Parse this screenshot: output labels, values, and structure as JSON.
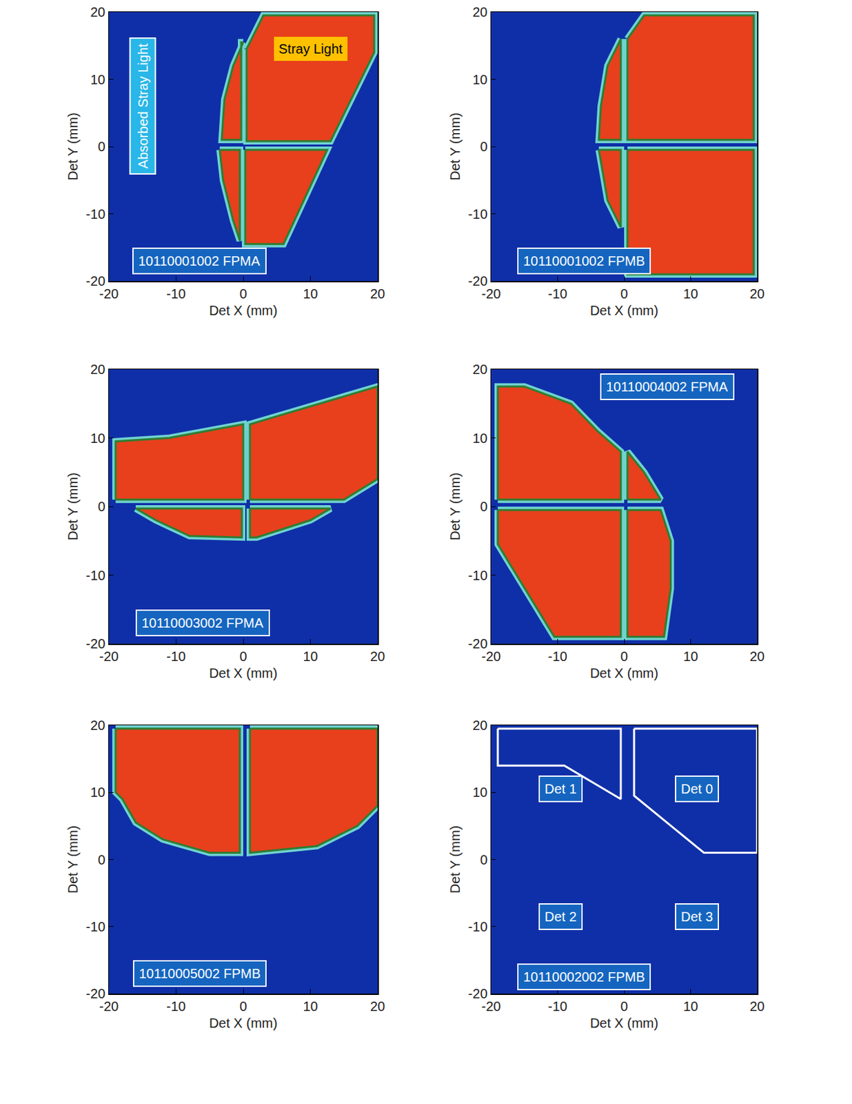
{
  "chart_data": [
    {
      "type": "region_map",
      "line_style": "filled",
      "color": "#e8401c",
      "xlabel": "Det X (mm)",
      "ylabel": "Det Y (mm)",
      "xlim": [
        -20,
        20
      ],
      "ylim": [
        -20,
        20
      ],
      "xticks": [
        -20,
        -10,
        0,
        10,
        20
      ],
      "yticks": [
        -20,
        -10,
        0,
        10,
        20
      ],
      "regions": [
        {
          "x": [
            0,
            -1.5,
            -2.8,
            -3.2,
            -0.3,
            -0.3
          ],
          "y": [
            15.5,
            12,
            7,
            1,
            1,
            15.5
          ]
        },
        {
          "x": [
            0.5,
            3,
            19.5,
            19.5,
            13,
            0.5
          ],
          "y": [
            14.5,
            19.5,
            19.5,
            14,
            0.8,
            0.8
          ]
        },
        {
          "x": [
            -3.5,
            -0.5,
            -0.5,
            -1.5,
            -3
          ],
          "y": [
            -0.5,
            -0.5,
            -14,
            -11,
            -5
          ]
        },
        {
          "x": [
            0.3,
            12.5,
            6,
            0.3
          ],
          "y": [
            -0.5,
            -0.5,
            -14.5,
            -14.5
          ]
        }
      ],
      "annotations": [
        {
          "text": "Absorbed Stray Light",
          "x": -15,
          "y": 6,
          "color": "#29b6e8",
          "vertical": true
        },
        {
          "text": "Stray Light",
          "x": 10,
          "y": 14.5,
          "color": "#ffc000"
        },
        {
          "text": "10110001002 FPMA",
          "x": -6.5,
          "y": -17,
          "color": "#1565c0"
        }
      ]
    },
    {
      "type": "region_map",
      "line_style": "filled",
      "color": "#e8401c",
      "xlabel": "Det X (mm)",
      "ylabel": "Det Y (mm)",
      "xlim": [
        -20,
        20
      ],
      "ylim": [
        -20,
        20
      ],
      "xticks": [
        -20,
        -10,
        0,
        10,
        20
      ],
      "yticks": [
        -20,
        -10,
        0,
        10,
        20
      ],
      "regions": [
        {
          "x": [
            -0.5,
            -2.5,
            -3.5,
            -3.8,
            -0.5
          ],
          "y": [
            16,
            12,
            6,
            1,
            1
          ]
        },
        {
          "x": [
            0.5,
            3,
            19.5,
            19.5,
            0.5
          ],
          "y": [
            16,
            19.5,
            19.5,
            1,
            1
          ]
        },
        {
          "x": [
            -3.8,
            -0.5,
            -0.5,
            -2.5
          ],
          "y": [
            -0.5,
            -0.5,
            -12,
            -8
          ]
        },
        {
          "x": [
            0.5,
            19.5,
            19.5,
            0.5
          ],
          "y": [
            -0.5,
            -0.5,
            -19,
            -19
          ]
        }
      ],
      "annotations": [
        {
          "text": "10110001002 FPMB",
          "x": -6,
          "y": -17,
          "color": "#1565c0"
        }
      ]
    },
    {
      "type": "region_map",
      "line_style": "filled",
      "color": "#e8401c",
      "xlabel": "Det X (mm)",
      "ylabel": "Det Y (mm)",
      "xlim": [
        -20,
        20
      ],
      "ylim": [
        -20,
        20
      ],
      "xticks": [
        -20,
        -10,
        0,
        10,
        20
      ],
      "yticks": [
        -20,
        -10,
        0,
        10,
        20
      ],
      "regions": [
        {
          "x": [
            -19,
            -19,
            -11,
            0,
            0
          ],
          "y": [
            1,
            9.5,
            10,
            12,
            1
          ]
        },
        {
          "x": [
            1,
            1,
            20,
            20,
            15
          ],
          "y": [
            1,
            12,
            17.5,
            4,
            1
          ]
        },
        {
          "x": [
            -16,
            -0.2,
            -0.2,
            -8,
            -13
          ],
          "y": [
            -0.3,
            -0.3,
            -4.5,
            -4.3,
            -2
          ]
        },
        {
          "x": [
            1,
            13,
            10,
            2,
            1
          ],
          "y": [
            -0.3,
            -0.3,
            -2,
            -4.5,
            -4.5
          ]
        }
      ],
      "annotations": [
        {
          "text": "10110003002 FPMA",
          "x": -6,
          "y": -17,
          "color": "#1565c0"
        }
      ]
    },
    {
      "type": "region_map",
      "line_style": "filled",
      "color": "#e8401c",
      "xlabel": "Det X (mm)",
      "ylabel": "Det Y (mm)",
      "xlim": [
        -20,
        20
      ],
      "ylim": [
        -20,
        20
      ],
      "xticks": [
        -20,
        -10,
        0,
        10,
        20
      ],
      "yticks": [
        -20,
        -10,
        0,
        10,
        20
      ],
      "regions": [
        {
          "x": [
            -19,
            -19,
            -15,
            -8,
            -4,
            -0.5,
            -0.5
          ],
          "y": [
            1,
            17.5,
            17.5,
            15,
            11,
            8,
            1
          ]
        },
        {
          "x": [
            0.5,
            0.5,
            3,
            5.5
          ],
          "y": [
            1,
            8,
            5,
            1
          ]
        },
        {
          "x": [
            -19,
            -0.5,
            -0.5,
            -10.5,
            -19
          ],
          "y": [
            -0.5,
            -0.5,
            -19,
            -19,
            -5.5
          ]
        },
        {
          "x": [
            0.5,
            5.5,
            7,
            7,
            6,
            0.5
          ],
          "y": [
            -0.5,
            -0.5,
            -5,
            -12,
            -19,
            -19
          ]
        }
      ],
      "annotations": [
        {
          "text": "10110004002 FPMA",
          "x": 6.5,
          "y": 17.5,
          "color": "#1565c0"
        }
      ]
    },
    {
      "type": "region_map",
      "line_style": "filled",
      "color": "#e8401c",
      "xlabel": "Det X (mm)",
      "ylabel": "Det Y (mm)",
      "xlim": [
        -20,
        20
      ],
      "ylim": [
        -20,
        20
      ],
      "xticks": [
        -20,
        -10,
        0,
        10,
        20
      ],
      "yticks": [
        -20,
        -10,
        0,
        10,
        20
      ],
      "regions": [
        {
          "x": [
            -19,
            -0.5,
            -0.5,
            -5,
            -12,
            -16,
            -18,
            -19
          ],
          "y": [
            19.5,
            19.5,
            1,
            1,
            3,
            5.5,
            9,
            10
          ]
        },
        {
          "x": [
            1,
            20,
            20,
            17,
            11,
            1
          ],
          "y": [
            19.5,
            19.5,
            8,
            5,
            2,
            1
          ]
        }
      ],
      "annotations": [
        {
          "text": "10110005002 FPMB",
          "x": -6.5,
          "y": -17,
          "color": "#1565c0"
        }
      ]
    },
    {
      "type": "region_map",
      "line_style": "outline",
      "color": "#ffffff",
      "xlabel": "Det X (mm)",
      "ylabel": "Det Y (mm)",
      "xlim": [
        -20,
        20
      ],
      "ylim": [
        -20,
        20
      ],
      "xticks": [
        -20,
        -10,
        0,
        10,
        20
      ],
      "yticks": [
        -20,
        -10,
        0,
        10,
        20
      ],
      "regions": [
        {
          "x": [
            -19,
            -0.5,
            -0.5,
            -9,
            -19
          ],
          "y": [
            19.5,
            19.5,
            9,
            14,
            14
          ]
        },
        {
          "x": [
            1.5,
            20,
            20,
            12,
            1.5
          ],
          "y": [
            19.5,
            19.5,
            1,
            1,
            9.5
          ]
        }
      ],
      "annotations": [
        {
          "text": "Det 1",
          "x": -9.5,
          "y": 10.5,
          "color": "#1565c0"
        },
        {
          "text": "Det 0",
          "x": 11,
          "y": 10.5,
          "color": "#1565c0"
        },
        {
          "text": "Det 2",
          "x": -9.5,
          "y": -8.5,
          "color": "#1565c0"
        },
        {
          "text": "Det 3",
          "x": 11,
          "y": -8.5,
          "color": "#1565c0"
        },
        {
          "text": "10110002002 FPMB",
          "x": -6,
          "y": -17.5,
          "color": "#1565c0"
        }
      ]
    }
  ]
}
